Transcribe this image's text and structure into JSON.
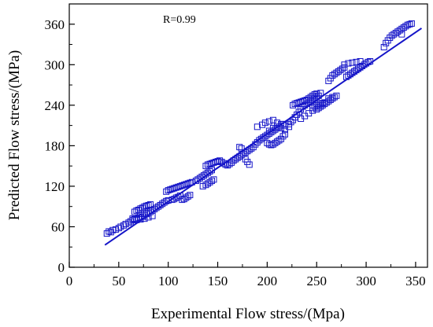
{
  "chart_data": {
    "type": "scatter",
    "annotation": "R=0.99",
    "xlabel": "Experimental Flow stress/(Mpa)",
    "ylabel": "Predicted Flow stress/(MPa)",
    "xlim": [
      0,
      362
    ],
    "ylim": [
      0,
      390
    ],
    "xticks": [
      0,
      50,
      100,
      150,
      200,
      250,
      300,
      350
    ],
    "yticks": [
      0,
      60,
      120,
      180,
      240,
      300,
      360
    ],
    "grid": false,
    "colors": {
      "series": "#1515c8",
      "axis": "#000000"
    },
    "fit_line": {
      "x": [
        36,
        356
      ],
      "y": [
        33,
        354
      ]
    },
    "series": [
      {
        "marker": "open-square",
        "points": [
          [
            38,
            50
          ],
          [
            40,
            53
          ],
          [
            42,
            52
          ],
          [
            44,
            55
          ],
          [
            47,
            56
          ],
          [
            50,
            58
          ],
          [
            52,
            60
          ],
          [
            55,
            62
          ],
          [
            57,
            64
          ],
          [
            60,
            66
          ],
          [
            62,
            68
          ],
          [
            64,
            70
          ],
          [
            66,
            71
          ],
          [
            68,
            72
          ],
          [
            70,
            73
          ],
          [
            72,
            74
          ],
          [
            74,
            75
          ],
          [
            76,
            77
          ],
          [
            78,
            79
          ],
          [
            80,
            80
          ],
          [
            82,
            82
          ],
          [
            84,
            84
          ],
          [
            86,
            86
          ],
          [
            88,
            88
          ],
          [
            90,
            90
          ],
          [
            92,
            92
          ],
          [
            94,
            94
          ],
          [
            96,
            96
          ],
          [
            98,
            98
          ],
          [
            100,
            99
          ],
          [
            66,
            82
          ],
          [
            68,
            84
          ],
          [
            70,
            85
          ],
          [
            72,
            87
          ],
          [
            74,
            88
          ],
          [
            76,
            90
          ],
          [
            78,
            91
          ],
          [
            80,
            92
          ],
          [
            82,
            93
          ],
          [
            64,
            72
          ],
          [
            68,
            70
          ],
          [
            72,
            71
          ],
          [
            76,
            72
          ],
          [
            80,
            74
          ],
          [
            84,
            76
          ],
          [
            98,
            112
          ],
          [
            100,
            114
          ],
          [
            102,
            115
          ],
          [
            104,
            116
          ],
          [
            106,
            117
          ],
          [
            108,
            118
          ],
          [
            110,
            119
          ],
          [
            112,
            120
          ],
          [
            114,
            121
          ],
          [
            116,
            122
          ],
          [
            118,
            123
          ],
          [
            120,
            124
          ],
          [
            122,
            125
          ],
          [
            124,
            126
          ],
          [
            104,
            100
          ],
          [
            106,
            101
          ],
          [
            108,
            103
          ],
          [
            110,
            104
          ],
          [
            112,
            106
          ],
          [
            114,
            100
          ],
          [
            116,
            101
          ],
          [
            118,
            103
          ],
          [
            120,
            105
          ],
          [
            122,
            107
          ],
          [
            128,
            128
          ],
          [
            130,
            130
          ],
          [
            132,
            132
          ],
          [
            134,
            134
          ],
          [
            136,
            136
          ],
          [
            138,
            138
          ],
          [
            140,
            140
          ],
          [
            142,
            142
          ],
          [
            144,
            144
          ],
          [
            135,
            120
          ],
          [
            138,
            122
          ],
          [
            140,
            124
          ],
          [
            142,
            126
          ],
          [
            144,
            128
          ],
          [
            146,
            130
          ],
          [
            138,
            150
          ],
          [
            140,
            152
          ],
          [
            142,
            153
          ],
          [
            144,
            154
          ],
          [
            146,
            155
          ],
          [
            148,
            156
          ],
          [
            150,
            157
          ],
          [
            152,
            158
          ],
          [
            154,
            156
          ],
          [
            156,
            154
          ],
          [
            158,
            152
          ],
          [
            160,
            151
          ],
          [
            162,
            153
          ],
          [
            164,
            155
          ],
          [
            166,
            158
          ],
          [
            168,
            160
          ],
          [
            170,
            162
          ],
          [
            172,
            164
          ],
          [
            174,
            166
          ],
          [
            176,
            168
          ],
          [
            178,
            170
          ],
          [
            180,
            172
          ],
          [
            182,
            174
          ],
          [
            184,
            176
          ],
          [
            178,
            160
          ],
          [
            180,
            156
          ],
          [
            182,
            152
          ],
          [
            172,
            178
          ],
          [
            174,
            176
          ],
          [
            186,
            178
          ],
          [
            188,
            182
          ],
          [
            190,
            185
          ],
          [
            192,
            188
          ],
          [
            194,
            190
          ],
          [
            196,
            192
          ],
          [
            198,
            194
          ],
          [
            200,
            196
          ],
          [
            202,
            198
          ],
          [
            204,
            200
          ],
          [
            206,
            202
          ],
          [
            208,
            204
          ],
          [
            210,
            206
          ],
          [
            212,
            208
          ],
          [
            214,
            210
          ],
          [
            216,
            212
          ],
          [
            190,
            208
          ],
          [
            195,
            211
          ],
          [
            198,
            214
          ],
          [
            202,
            216
          ],
          [
            206,
            218
          ],
          [
            210,
            214
          ],
          [
            214,
            212
          ],
          [
            218,
            210
          ],
          [
            222,
            208
          ],
          [
            200,
            184
          ],
          [
            202,
            182
          ],
          [
            204,
            181
          ],
          [
            206,
            182
          ],
          [
            208,
            184
          ],
          [
            210,
            186
          ],
          [
            212,
            188
          ],
          [
            214,
            190
          ],
          [
            216,
            194
          ],
          [
            218,
            197
          ],
          [
            202,
            202
          ],
          [
            206,
            206
          ],
          [
            210,
            208
          ],
          [
            214,
            206
          ],
          [
            218,
            204
          ],
          [
            222,
            212
          ],
          [
            224,
            215
          ],
          [
            226,
            218
          ],
          [
            228,
            222
          ],
          [
            230,
            226
          ],
          [
            232,
            230
          ],
          [
            234,
            234
          ],
          [
            236,
            238
          ],
          [
            238,
            240
          ],
          [
            240,
            242
          ],
          [
            242,
            244
          ],
          [
            244,
            246
          ],
          [
            246,
            248
          ],
          [
            248,
            250
          ],
          [
            250,
            252
          ],
          [
            252,
            254
          ],
          [
            226,
            240
          ],
          [
            228,
            242
          ],
          [
            230,
            243
          ],
          [
            232,
            244
          ],
          [
            234,
            245
          ],
          [
            236,
            246
          ],
          [
            238,
            247
          ],
          [
            240,
            248
          ],
          [
            242,
            250
          ],
          [
            244,
            252
          ],
          [
            246,
            254
          ],
          [
            248,
            256
          ],
          [
            250,
            257
          ],
          [
            254,
            258
          ],
          [
            234,
            220
          ],
          [
            238,
            224
          ],
          [
            242,
            228
          ],
          [
            246,
            232
          ],
          [
            250,
            234
          ],
          [
            252,
            236
          ],
          [
            254,
            238
          ],
          [
            256,
            240
          ],
          [
            258,
            242
          ],
          [
            260,
            244
          ],
          [
            262,
            246
          ],
          [
            264,
            248
          ],
          [
            266,
            250
          ],
          [
            268,
            252
          ],
          [
            270,
            254
          ],
          [
            246,
            236
          ],
          [
            248,
            238
          ],
          [
            250,
            240
          ],
          [
            252,
            240
          ],
          [
            254,
            242
          ],
          [
            256,
            243
          ],
          [
            258,
            244
          ],
          [
            262,
            250
          ],
          [
            266,
            252
          ],
          [
            262,
            276
          ],
          [
            264,
            280
          ],
          [
            266,
            284
          ],
          [
            268,
            286
          ],
          [
            270,
            288
          ],
          [
            272,
            290
          ],
          [
            274,
            292
          ],
          [
            276,
            294
          ],
          [
            278,
            296
          ],
          [
            280,
            282
          ],
          [
            282,
            284
          ],
          [
            284,
            286
          ],
          [
            286,
            288
          ],
          [
            288,
            290
          ],
          [
            290,
            292
          ],
          [
            292,
            294
          ],
          [
            294,
            296
          ],
          [
            296,
            298
          ],
          [
            298,
            300
          ],
          [
            300,
            302
          ],
          [
            302,
            304
          ],
          [
            304,
            305
          ],
          [
            278,
            300
          ],
          [
            282,
            302
          ],
          [
            286,
            303
          ],
          [
            290,
            304
          ],
          [
            294,
            305
          ],
          [
            318,
            326
          ],
          [
            320,
            332
          ],
          [
            322,
            336
          ],
          [
            324,
            340
          ],
          [
            326,
            343
          ],
          [
            328,
            345
          ],
          [
            330,
            347
          ],
          [
            332,
            349
          ],
          [
            334,
            351
          ],
          [
            336,
            353
          ],
          [
            338,
            355
          ],
          [
            340,
            357
          ],
          [
            342,
            359
          ],
          [
            344,
            360
          ],
          [
            346,
            361
          ],
          [
            336,
            345
          ]
        ]
      }
    ]
  }
}
